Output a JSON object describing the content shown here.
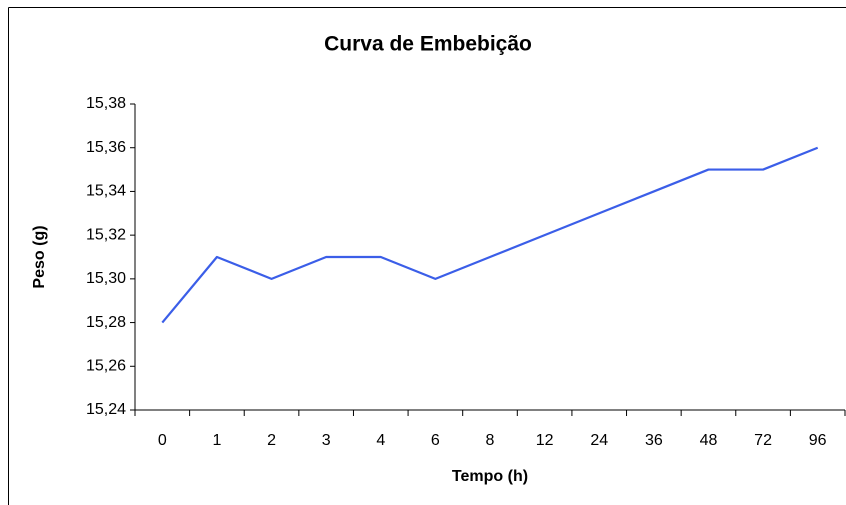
{
  "chart_data": {
    "type": "line",
    "title": "Curva de Embebição",
    "x_label": "Tempo (h)",
    "y_label": "Peso (g)",
    "categories": [
      "0",
      "1",
      "2",
      "3",
      "4",
      "6",
      "8",
      "12",
      "24",
      "36",
      "48",
      "72",
      "96"
    ],
    "series": [
      {
        "name": "Peso",
        "color": "#3b5ee8",
        "values": [
          15.28,
          15.31,
          15.3,
          15.31,
          15.31,
          15.3,
          15.31,
          15.32,
          15.33,
          15.34,
          15.35,
          15.35,
          15.36
        ]
      }
    ],
    "ylim": [
      15.24,
      15.38
    ],
    "yticks": [
      {
        "value": 15.24,
        "label": "15,24"
      },
      {
        "value": 15.26,
        "label": "15,26"
      },
      {
        "value": 15.28,
        "label": "15,28"
      },
      {
        "value": 15.3,
        "label": "15,30"
      },
      {
        "value": 15.32,
        "label": "15,32"
      },
      {
        "value": 15.34,
        "label": "15,34"
      },
      {
        "value": 15.36,
        "label": "15,36"
      },
      {
        "value": 15.38,
        "label": "15,38"
      }
    ],
    "grid": false
  }
}
